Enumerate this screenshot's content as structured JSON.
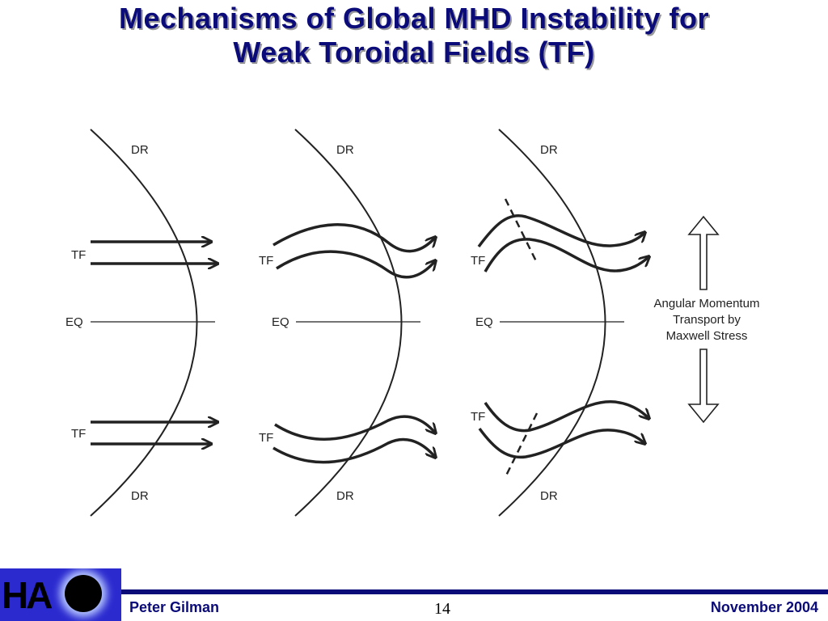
{
  "slide": {
    "title_line1": "Mechanisms of Global MHD Instability for",
    "title_line2": "Weak Toroidal Fields (TF)"
  },
  "diagram": {
    "panel_labels": {
      "dr": "DR",
      "tf": "TF",
      "eq": "EQ"
    },
    "annotation": {
      "line1": "Angular Momentum",
      "line2": "Transport by",
      "line3": "Maxwell Stress"
    }
  },
  "footer": {
    "author": "Peter Gilman",
    "page_number": "14",
    "date": "November 2004",
    "logo_text": "HA"
  },
  "colors": {
    "title": "#0b0b7a",
    "footer_bar": "#0b0b7a",
    "logo_background": "#2a2acf"
  }
}
